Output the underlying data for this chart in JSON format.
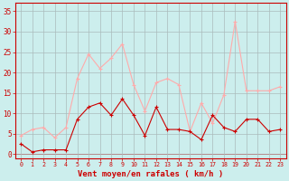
{
  "hours": [
    0,
    1,
    2,
    3,
    4,
    5,
    6,
    7,
    8,
    9,
    10,
    11,
    12,
    13,
    14,
    15,
    16,
    17,
    18,
    19,
    20,
    21,
    22,
    23
  ],
  "wind_avg": [
    2.5,
    0.5,
    1.0,
    1.0,
    1.0,
    8.5,
    11.5,
    12.5,
    9.5,
    13.5,
    9.5,
    4.5,
    11.5,
    6.0,
    6.0,
    5.5,
    3.5,
    9.5,
    6.5,
    5.5,
    8.5,
    8.5,
    5.5,
    6.0
  ],
  "wind_gust": [
    4.5,
    6.0,
    6.5,
    4.0,
    6.5,
    18.5,
    24.5,
    21.0,
    23.5,
    27.0,
    17.0,
    10.5,
    17.5,
    18.5,
    17.0,
    5.5,
    12.5,
    7.5,
    14.5,
    32.5,
    15.5,
    15.5,
    15.5,
    16.5
  ],
  "color_avg": "#cc0000",
  "color_gust": "#ffaaaa",
  "background": "#cceeed",
  "grid_color": "#aabbbb",
  "xlabel": "Vent moyen/en rafales ( km/h )",
  "xlabel_color": "#cc0000",
  "ytick_vals": [
    0,
    5,
    10,
    15,
    20,
    25,
    30,
    35
  ],
  "ylim": [
    -1.0,
    37.0
  ],
  "xlim": [
    -0.5,
    23.5
  ],
  "tick_color": "#cc0000",
  "spine_color": "#cc0000",
  "marker_avg": "+",
  "marker_gust": "+",
  "linewidth": 0.8,
  "markersize": 3.5,
  "xlabel_fontsize": 6.5,
  "tick_fontsize_x": 4.8,
  "tick_fontsize_y": 5.5
}
